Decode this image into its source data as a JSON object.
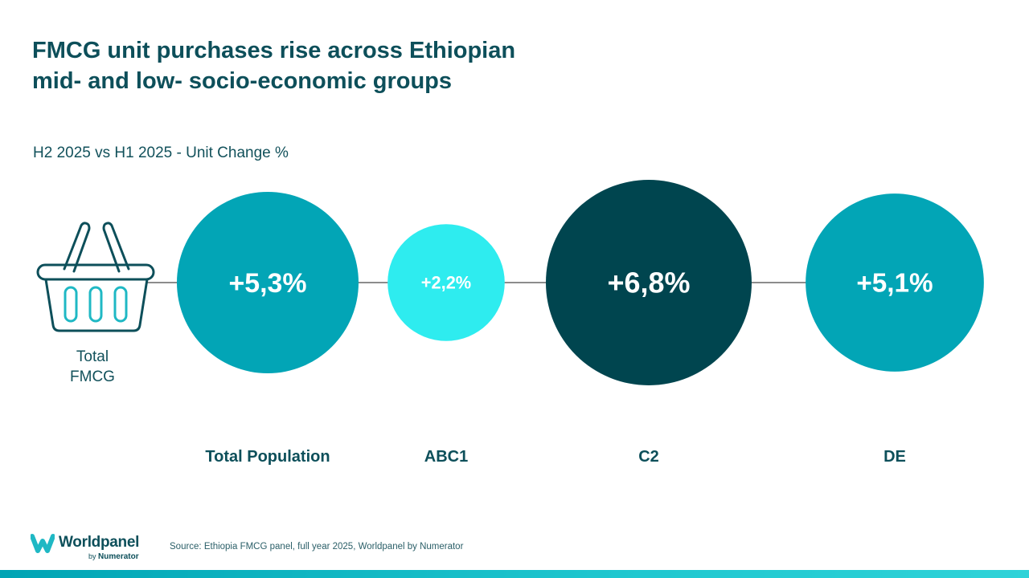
{
  "title_lines": [
    "FMCG unit purchases rise across Ethiopian",
    "mid- and low- socio-economic groups"
  ],
  "subtitle": "H2 2025 vs H1 2025 - Unit Change %",
  "chart_data": {
    "type": "bubble",
    "title": "FMCG unit purchases rise across Ethiopian mid- and low- socio-economic groups",
    "subtitle": "H2 2025 vs H1 2025 - Unit Change %",
    "metric": "Unit Change %",
    "row_label": [
      "Total",
      "FMCG"
    ],
    "categories": [
      "Total Population",
      "ABC1",
      "C2",
      "DE"
    ],
    "values": [
      5.3,
      2.2,
      6.8,
      5.1
    ],
    "value_labels": [
      "+5,3%",
      "+2,2%",
      "+6,8%",
      "+5,1%"
    ],
    "colors": [
      "#02a5b6",
      "#2eecef",
      "#00454f",
      "#02a5b6"
    ]
  },
  "icon": "shopping-basket-icon",
  "source": "Source: Ethiopia FMCG panel, full year 2025, Worldpanel by Numerator",
  "logo": {
    "name": "Worldpanel",
    "by": "by",
    "parent": "Numerator"
  },
  "colors": {
    "heading": "#0d4f5a",
    "line": "#1a1a1a",
    "bar_start": "#00a4b4",
    "bar_end": "#2fd3d8"
  }
}
